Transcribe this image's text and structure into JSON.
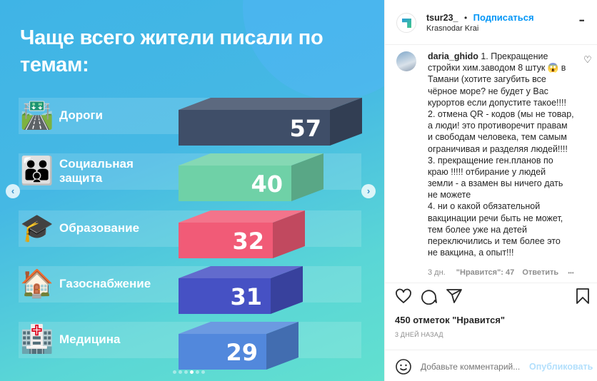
{
  "post_image": {
    "title": "Чаще всего жители писали по темам:",
    "chart_data": {
      "type": "bar",
      "orientation": "horizontal",
      "categories": [
        "Дороги",
        "Социальная защита",
        "Образование",
        "Газоснабжение",
        "Медицина"
      ],
      "category_lines": [
        [
          "Дороги"
        ],
        [
          "Социальная",
          "защита"
        ],
        [
          "Образование"
        ],
        [
          "Газоснабжение"
        ],
        [
          "Медицина"
        ]
      ],
      "category_icons": [
        "motorway-icon",
        "family-icon",
        "graduation-cap-icon",
        "house-icon",
        "hospital-icon"
      ],
      "values": [
        57,
        40,
        32,
        31,
        29
      ],
      "colors": [
        "#3f4e68",
        "#6fd1a7",
        "#f15b77",
        "#4651c4",
        "#5288dc"
      ],
      "data_labels": [
        "57",
        "40",
        "32",
        "31",
        "29"
      ]
    },
    "carousel": {
      "total": 6,
      "active": 4
    }
  },
  "header": {
    "username": "tsur23_",
    "separator": "•",
    "follow_label": "Подписаться",
    "location": "Krasnodar Krai",
    "more_label": "•••"
  },
  "comment": {
    "username": "daria_ghido",
    "text_lines": [
      "1. Прекращение",
      "стройки хим.заводом 8 штук 😱 в",
      "Тамани (хотите загубить все",
      "чёрное море? не будет у Вас",
      "курортов если допустите такое!!!!",
      "2. отмена QR - кодов (мы не товар,",
      "а люди! это противоречит правам",
      "и свободам человека, тем самым",
      "ограничивая и разделяя людей!!!!",
      "3. прекращение ген.планов по",
      "краю !!!!! отбирание у людей",
      "земли - а взамен вы ничего дать",
      "не можете",
      "4. ни о какой обязательной",
      "вакцинации речи быть не может,",
      "тем более уже на детей",
      "переключились и тем более это",
      "не вакцина, а опыт!!!"
    ],
    "time": "3 дн.",
    "likes": "\"Нравится\": 47",
    "reply_label": "Ответить",
    "more_label": "•••"
  },
  "actions": {
    "likes_count": "450 отметок \"Нравится\"",
    "posted": "3 ДНЕЙ НАЗАД"
  },
  "add_comment": {
    "placeholder": "Добавьте комментарий...",
    "publish_label": "Опубликовать"
  },
  "colors": {
    "accent": "#0095f6",
    "text": "#262626",
    "muted": "#8e8e8e"
  }
}
